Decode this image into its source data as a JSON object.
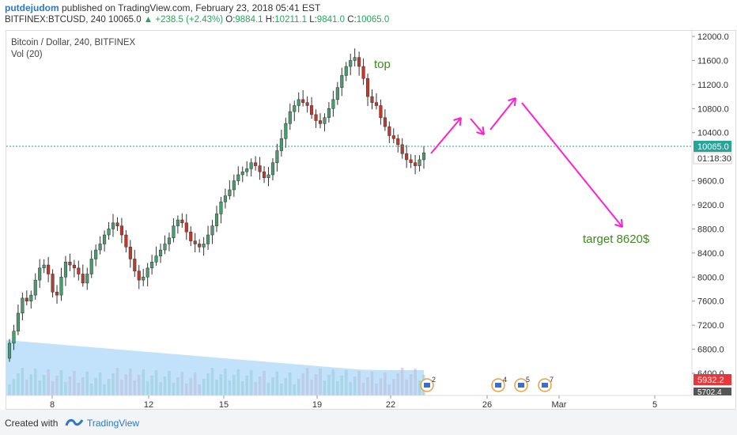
{
  "header": {
    "user": "putdejudom",
    "published": "published on TradingView.com, February 23, 2018 05:41 EST",
    "symbol_line_prefix": "BITFINEX:BTCUSD, 240",
    "last": "10065.0",
    "change": "▲ +238.5 (+2.43%)",
    "o_label": "O:",
    "o": "9884.1",
    "h_label": "H:",
    "h": "10211.1",
    "l_label": "L:",
    "l": "9841.0",
    "c_label": "C:",
    "c": "10065.0"
  },
  "legend": {
    "title": "Bitcoin / Dollar, 240, BITFINEX",
    "vol": "Vol (20)"
  },
  "price_axis": {
    "ticks": [
      "12000.0",
      "11600.0",
      "11200.0",
      "10800.0",
      "10400.0",
      "9600.0",
      "9200.0",
      "8800.0",
      "8400.0",
      "8000.0",
      "7600.0",
      "7200.0",
      "6800.0",
      "6400.0"
    ],
    "last_price": "10065.0",
    "countdown": "01:18:30",
    "vol_label_1": "5932.2",
    "vol_label_2": "5702.4"
  },
  "time_axis": {
    "ticks": [
      "8",
      "12",
      "15",
      "19",
      "22",
      "26",
      "Mar",
      "5"
    ]
  },
  "annotations": {
    "top": "top",
    "target": "target 8620$"
  },
  "events": [
    "2",
    "4",
    "5",
    "7"
  ],
  "footer": {
    "created_with": "Created with",
    "brand": "TradingView"
  },
  "colors": {
    "up": "#4a9c6e",
    "down": "#c0392b",
    "volume": "#90caf9",
    "projection": "#ff1fd2",
    "annotation": "#3c8a1e",
    "last_line": "#26a69a"
  },
  "chart_data": {
    "type": "candlestick",
    "title": "Bitcoin / Dollar, 240, BITFINEX",
    "period": "240",
    "ylim": [
      6000,
      12100
    ],
    "x_ticks": [
      "8",
      "12",
      "15",
      "19",
      "22",
      "26",
      "Mar",
      "5"
    ],
    "closes": [
      6900,
      7100,
      7400,
      7650,
      7600,
      7700,
      7950,
      8150,
      8200,
      8050,
      7750,
      7700,
      8000,
      8250,
      8200,
      8150,
      8050,
      7900,
      8050,
      8300,
      8450,
      8550,
      8700,
      8800,
      8900,
      8850,
      8700,
      8500,
      8300,
      8100,
      7950,
      8000,
      8150,
      8250,
      8350,
      8450,
      8550,
      8650,
      8850,
      8950,
      8900,
      8750,
      8600,
      8550,
      8500,
      8550,
      8700,
      8850,
      9050,
      9250,
      9350,
      9450,
      9600,
      9700,
      9750,
      9800,
      9900,
      9850,
      9750,
      9650,
      9700,
      9900,
      10100,
      10300,
      10550,
      10750,
      10850,
      10950,
      10900,
      10850,
      10700,
      10600,
      10550,
      10650,
      10800,
      10950,
      11150,
      11350,
      11500,
      11600,
      11650,
      11500,
      11300,
      11000,
      10900,
      10850,
      10650,
      10500,
      10350,
      10300,
      10200,
      10050,
      9950,
      9900,
      9850,
      9950,
      10065
    ],
    "projection_path": [
      10065,
      10650,
      10350,
      10950,
      8620
    ],
    "annotation_top": "top",
    "annotation_target": "target 8620$"
  }
}
